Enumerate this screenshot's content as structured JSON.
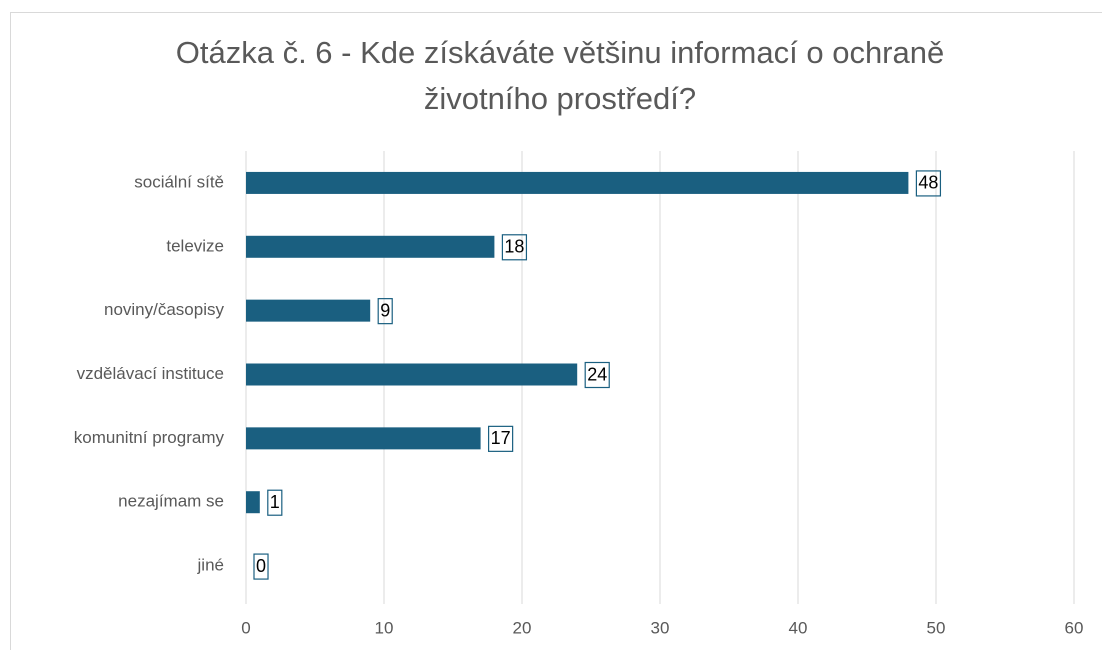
{
  "chart_data": {
    "type": "bar",
    "orientation": "horizontal",
    "title": "Otázka č. 6 - Kde získáváte většinu informací o ochraně životního prostředí?",
    "categories": [
      "sociální sítě",
      "televize",
      "noviny/časopisy",
      "vzdělávací instituce",
      "komunitní programy",
      "nezajímam se",
      "jiné"
    ],
    "values": [
      48,
      18,
      9,
      24,
      17,
      1,
      0
    ],
    "color": "#1a5f80",
    "xlim": [
      0,
      60
    ],
    "xticks": [
      0,
      10,
      20,
      30,
      40,
      50,
      60
    ],
    "grid": true
  }
}
